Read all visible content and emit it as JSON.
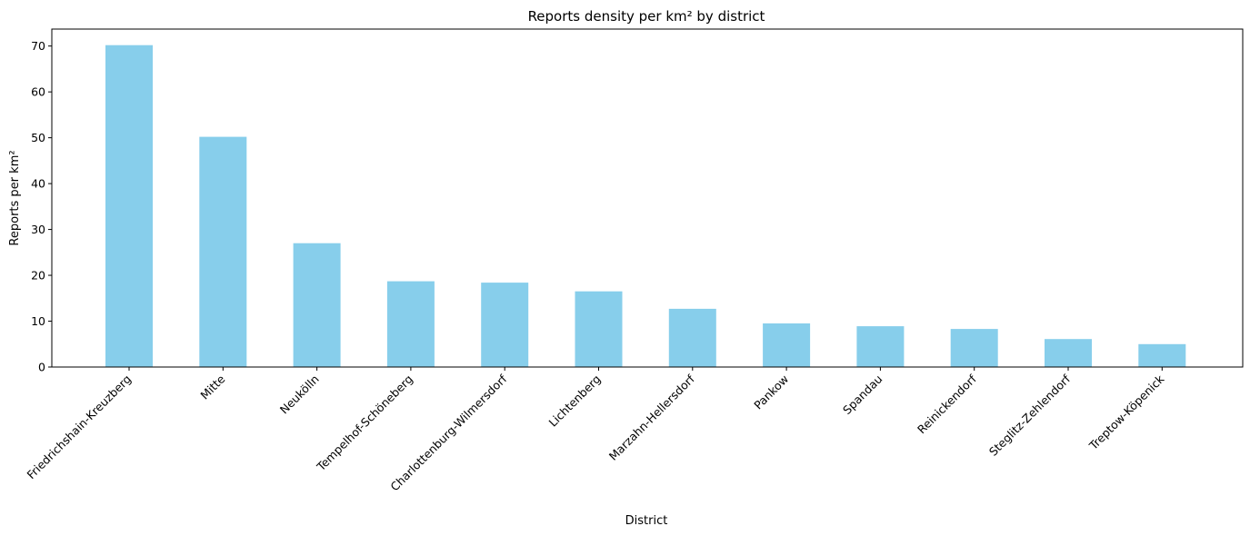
{
  "chart_data": {
    "type": "bar",
    "title": "Reports density per km² by district",
    "xlabel": "District",
    "ylabel": "Reports per km²",
    "categories": [
      "Friedrichshain-Kreuzberg",
      "Mitte",
      "Neukölln",
      "Tempelhof-Schöneberg",
      "Charlottenburg-Wilmersdorf",
      "Lichtenberg",
      "Marzahn-Hellersdorf",
      "Pankow",
      "Spandau",
      "Reinickendorf",
      "Steglitz-Zehlendorf",
      "Treptow-Köpenick"
    ],
    "values": [
      70.2,
      50.2,
      27.0,
      18.7,
      18.4,
      16.5,
      12.7,
      9.5,
      8.9,
      8.3,
      6.1,
      5.0
    ],
    "ylim": [
      0,
      73.7
    ],
    "yticks": [
      0,
      10,
      20,
      30,
      40,
      50,
      60,
      70
    ],
    "grid": false,
    "bar_color": "#87ceeb",
    "x_tick_rotation": 45
  }
}
